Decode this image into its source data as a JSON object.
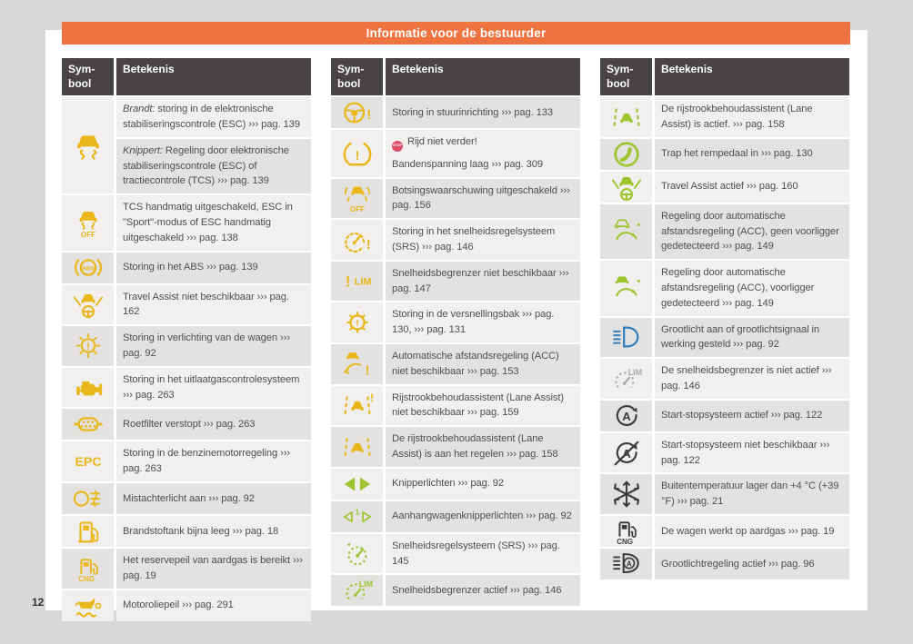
{
  "page": {
    "title": "Informatie voor de bestuurder",
    "number": "12"
  },
  "colors": {
    "orange": "#ef7340",
    "header_bg": "#484443",
    "row_light": "#f1f0ef",
    "row_dark": "#e3e2e0",
    "text": "#4f4f51",
    "yellow": "#e9b719",
    "green": "#9cc52f",
    "blue": "#2f7fc0",
    "gray": "#ababad",
    "dark": "#3c3c3e",
    "red": "#dd4b66"
  },
  "table_header": {
    "col1": "Sym-\nbool",
    "col2": "Betekenis"
  },
  "tables": [
    {
      "rows": [
        {
          "icon": "esc-warning-icon",
          "color": "yellow",
          "meanings": [
            {
              "paras": [
                [
                  {
                    "i": "Brandt:"
                  },
                  {
                    "t": " storing in de elektronische stabiliseringscontrole (ESC) ››› pag. 139"
                  }
                ]
              ]
            },
            {
              "paras": [
                [
                  {
                    "i": "Knippert:"
                  },
                  {
                    "t": " Regeling door elektronische stabiliseringscontrole (ESC) of tractiecontrole (TCS) ››› pag. 139"
                  }
                ]
              ]
            }
          ]
        },
        {
          "icon": "esc-off-icon",
          "color": "yellow",
          "meanings": [
            {
              "paras": [
                [
                  {
                    "t": "TCS handmatig uitgeschakeld, ESC in \"Sport\"-modus of ESC handmatig uitgeschakeld ››› pag. 138"
                  }
                ]
              ]
            }
          ]
        },
        {
          "icon": "abs-icon",
          "color": "yellow",
          "meanings": [
            {
              "paras": [
                [
                  {
                    "t": "Storing in het ABS ››› pag. 139"
                  }
                ]
              ]
            }
          ]
        },
        {
          "icon": "travel-assist-warning-icon",
          "color": "yellow",
          "meanings": [
            {
              "paras": [
                [
                  {
                    "t": "Travel Assist niet beschikbaar ››› pag. 162"
                  }
                ]
              ]
            }
          ]
        },
        {
          "icon": "bulb-warning-icon",
          "color": "yellow",
          "meanings": [
            {
              "paras": [
                [
                  {
                    "t": "Storing in verlichting van de wagen ››› pag. 92"
                  }
                ]
              ]
            }
          ]
        },
        {
          "icon": "engine-icon",
          "color": "yellow",
          "meanings": [
            {
              "paras": [
                [
                  {
                    "t": "Storing in het uitlaatgascontrolesysteem ››› pag. 263"
                  }
                ]
              ]
            }
          ]
        },
        {
          "icon": "particulate-filter-icon",
          "color": "yellow",
          "meanings": [
            {
              "paras": [
                [
                  {
                    "t": "Roetfilter verstopt ››› pag. 263"
                  }
                ]
              ]
            }
          ]
        },
        {
          "icon": "epc-icon",
          "color": "yellow",
          "meanings": [
            {
              "paras": [
                [
                  {
                    "t": "Storing in de benzinemotorregeling ››› pag. 263"
                  }
                ]
              ]
            }
          ]
        },
        {
          "icon": "rear-fog-icon",
          "color": "yellow",
          "meanings": [
            {
              "paras": [
                [
                  {
                    "t": "Mistachterlicht aan ››› pag. 92"
                  }
                ]
              ]
            }
          ]
        },
        {
          "icon": "fuel-pump-icon",
          "color": "yellow",
          "meanings": [
            {
              "paras": [
                [
                  {
                    "t": "Brandstoftank bijna leeg ››› pag. 18"
                  }
                ]
              ]
            }
          ]
        },
        {
          "icon": "cng-pump-icon",
          "color": "yellow",
          "meanings": [
            {
              "paras": [
                [
                  {
                    "t": "Het reservepeil van aardgas is bereikt ››› pag. 19"
                  }
                ]
              ]
            }
          ]
        },
        {
          "icon": "oil-icon",
          "color": "yellow",
          "meanings": [
            {
              "paras": [
                [
                  {
                    "t": "Motoroliepeil ››› pag. 291"
                  }
                ]
              ]
            }
          ]
        }
      ]
    },
    {
      "rows": [
        {
          "icon": "steering-warning-icon",
          "color": "yellow",
          "meanings": [
            {
              "paras": [
                [
                  {
                    "t": "Storing in stuurinrichting ››› pag. 133"
                  }
                ]
              ]
            }
          ]
        },
        {
          "icon": "tire-pressure-icon",
          "color": "yellow",
          "meanings": [
            {
              "paras": [
                [
                  {
                    "badge": "STOP"
                  },
                  {
                    "t": " Rijd niet verder!"
                  }
                ],
                [
                  {
                    "t": "Bandenspanning laag ››› pag. 309"
                  }
                ]
              ]
            }
          ]
        },
        {
          "icon": "front-assist-off-icon",
          "color": "yellow",
          "meanings": [
            {
              "paras": [
                [
                  {
                    "t": "Botsingswaarschuwing uitgeschakeld ››› pag. 156"
                  }
                ]
              ]
            }
          ]
        },
        {
          "icon": "cruise-warning-icon",
          "color": "yellow",
          "meanings": [
            {
              "paras": [
                [
                  {
                    "t": "Storing in het snelheidsregelsysteem (SRS) ››› pag. 146"
                  }
                ]
              ]
            }
          ]
        },
        {
          "icon": "lim-warning-icon",
          "color": "yellow",
          "meanings": [
            {
              "paras": [
                [
                  {
                    "t": "Snelheidsbegrenzer niet beschikbaar ››› pag. 147"
                  }
                ]
              ]
            }
          ]
        },
        {
          "icon": "gearbox-warning-icon",
          "color": "yellow",
          "meanings": [
            {
              "paras": [
                [
                  {
                    "t": "Storing in de versnellingsbak ››› pag. 130, ››› pag. 131"
                  }
                ]
              ]
            }
          ]
        },
        {
          "icon": "acc-warning-icon",
          "color": "yellow",
          "meanings": [
            {
              "paras": [
                [
                  {
                    "t": "Automatische afstandsregeling (ACC) niet beschikbaar ››› pag. 153"
                  }
                ]
              ]
            }
          ]
        },
        {
          "icon": "lane-assist-warning-icon",
          "color": "yellow",
          "meanings": [
            {
              "paras": [
                [
                  {
                    "t": "Rijstrookbehoudassistent (Lane Assist) niet beschikbaar ››› pag. 159"
                  }
                ]
              ]
            }
          ]
        },
        {
          "icon": "lane-assist-regulating-icon",
          "color": "yellow",
          "meanings": [
            {
              "paras": [
                [
                  {
                    "t": "De rijstrookbehoudassistent (Lane Assist) is aan het regelen ››› pag. 158"
                  }
                ]
              ]
            }
          ]
        },
        {
          "icon": "blinkers-icon",
          "color": "green",
          "meanings": [
            {
              "paras": [
                [
                  {
                    "t": "Knipperlichten ››› pag. 92"
                  }
                ]
              ]
            }
          ]
        },
        {
          "icon": "trailer-blinkers-icon",
          "color": "green",
          "meanings": [
            {
              "paras": [
                [
                  {
                    "t": "Aanhangwagenknipperlichten ››› pag. 92"
                  }
                ]
              ]
            }
          ]
        },
        {
          "icon": "cruise-active-icon",
          "color": "green",
          "meanings": [
            {
              "paras": [
                [
                  {
                    "t": "Snelheidsregelsysteem (SRS) ››› pag. 145"
                  }
                ]
              ]
            }
          ]
        },
        {
          "icon": "lim-active-icon",
          "color": "green",
          "meanings": [
            {
              "paras": [
                [
                  {
                    "t": "Snelheidsbegrenzer actief ››› pag. 146"
                  }
                ]
              ]
            }
          ]
        }
      ]
    },
    {
      "rows": [
        {
          "icon": "lane-assist-active-icon",
          "color": "green",
          "meanings": [
            {
              "paras": [
                [
                  {
                    "t": "De rijstrookbehoudassistent (Lane Assist) is actief. ››› pag. 158"
                  }
                ]
              ]
            }
          ]
        },
        {
          "icon": "brake-pedal-icon",
          "color": "green",
          "meanings": [
            {
              "paras": [
                [
                  {
                    "t": "Trap het rempedaal in ››› pag. 130"
                  }
                ]
              ]
            }
          ]
        },
        {
          "icon": "travel-assist-active-icon",
          "color": "green",
          "meanings": [
            {
              "paras": [
                [
                  {
                    "t": "Travel Assist actief ››› pag. 160"
                  }
                ]
              ]
            }
          ]
        },
        {
          "icon": "acc-no-target-icon",
          "color": "green",
          "meanings": [
            {
              "paras": [
                [
                  {
                    "t": "Regeling door automatische afstandsregeling (ACC), geen voorligger gedetecteerd ››› pag. 149"
                  }
                ]
              ]
            }
          ]
        },
        {
          "icon": "acc-target-icon",
          "color": "green",
          "meanings": [
            {
              "paras": [
                [
                  {
                    "t": "Regeling door automatische afstandsregeling (ACC), voorligger gedetecteerd ››› pag. 149"
                  }
                ]
              ]
            }
          ]
        },
        {
          "icon": "high-beam-icon",
          "color": "blue",
          "meanings": [
            {
              "paras": [
                [
                  {
                    "t": "Grootlicht aan of grootlichtsignaal in werking gesteld ››› pag. 92"
                  }
                ]
              ]
            }
          ]
        },
        {
          "icon": "lim-inactive-icon",
          "color": "gray",
          "meanings": [
            {
              "paras": [
                [
                  {
                    "t": "De snelheidsbegrenzer is niet actief ››› pag. 146"
                  }
                ]
              ]
            }
          ]
        },
        {
          "icon": "start-stop-icon",
          "color": "dark",
          "meanings": [
            {
              "paras": [
                [
                  {
                    "t": "Start-stopsysteem actief ››› pag. 122"
                  }
                ]
              ]
            }
          ]
        },
        {
          "icon": "start-stop-off-icon",
          "color": "dark",
          "meanings": [
            {
              "paras": [
                [
                  {
                    "t": "Start-stopsysteem niet beschikbaar ››› pag. 122"
                  }
                ]
              ]
            }
          ]
        },
        {
          "icon": "snowflake-icon",
          "color": "dark",
          "meanings": [
            {
              "paras": [
                [
                  {
                    "t": "Buitentemperatuur lager dan +4 °C (+39 °F) ››› pag. 21"
                  }
                ]
              ]
            }
          ]
        },
        {
          "icon": "cng-pump-dark-icon",
          "color": "dark",
          "meanings": [
            {
              "paras": [
                [
                  {
                    "t": "De wagen werkt op aardgas ››› pag. 19"
                  }
                ]
              ]
            }
          ]
        },
        {
          "icon": "auto-highbeam-icon",
          "color": "dark",
          "meanings": [
            {
              "paras": [
                [
                  {
                    "t": "Grootlichtregeling actief ››› pag. 96"
                  }
                ]
              ]
            }
          ]
        }
      ]
    }
  ]
}
